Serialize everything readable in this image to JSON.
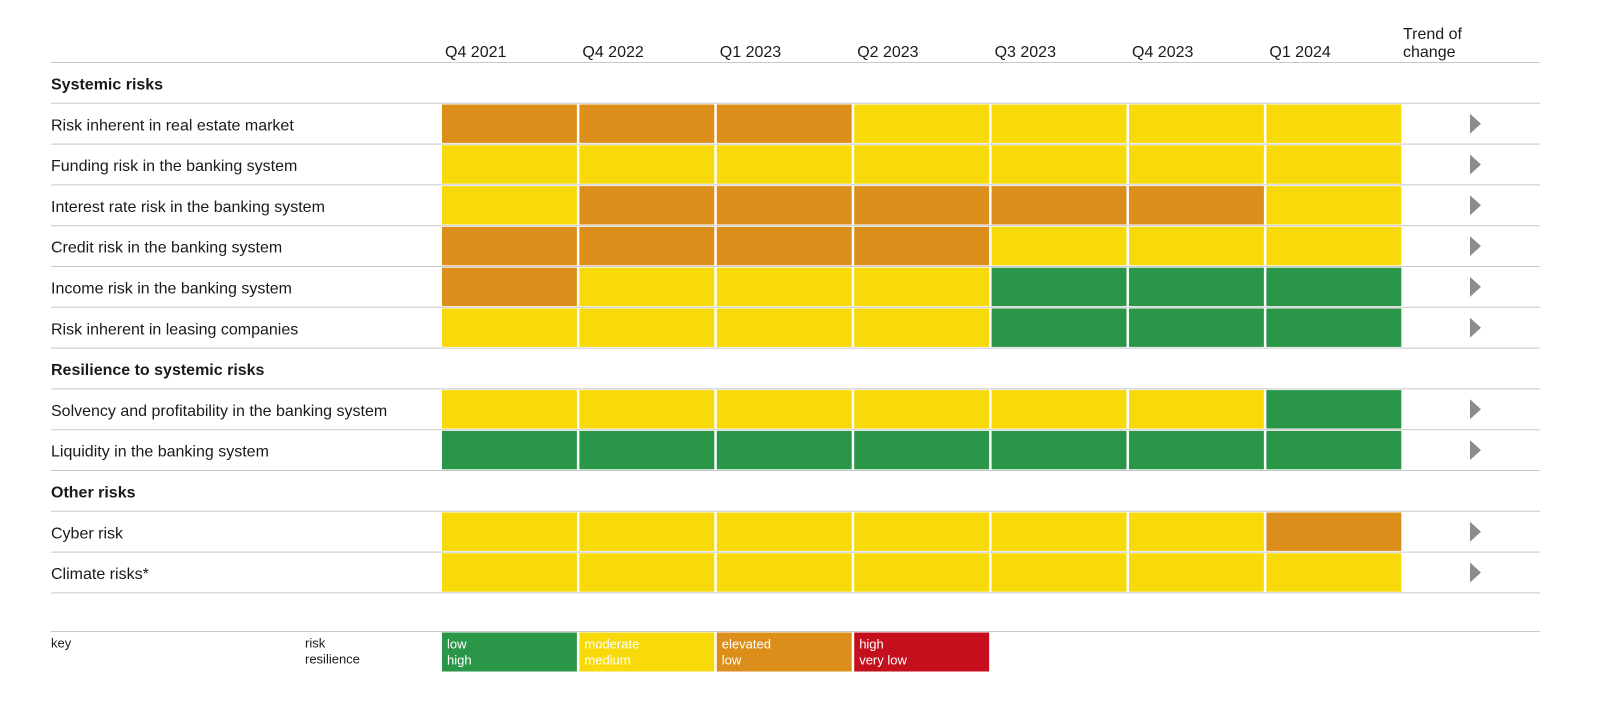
{
  "chart_data": {
    "type": "heatmap",
    "columns": [
      "Q4 2021",
      "Q4 2022",
      "Q1 2023",
      "Q2 2023",
      "Q3 2023",
      "Q4 2023",
      "Q1 2024"
    ],
    "trend_header": [
      "Trend of",
      "change"
    ],
    "level_colors": {
      "low": "#2a9647",
      "moderate": "#f8da0a",
      "elevated": "#db8e1a",
      "high": "#c50f1c"
    },
    "trend_icon": "right-triangle-icon",
    "trend_color": "#8c8c8c",
    "sections": [
      {
        "label": "Systemic risks",
        "rows": [
          {
            "label": "Risk inherent in real estate market",
            "levels": [
              "elevated",
              "elevated",
              "elevated",
              "moderate",
              "moderate",
              "moderate",
              "moderate"
            ],
            "trend": "right"
          },
          {
            "label": "Funding risk in the banking system",
            "levels": [
              "moderate",
              "moderate",
              "moderate",
              "moderate",
              "moderate",
              "moderate",
              "moderate"
            ],
            "trend": "right"
          },
          {
            "label": "Interest rate risk in the banking system",
            "levels": [
              "moderate",
              "elevated",
              "elevated",
              "elevated",
              "elevated",
              "elevated",
              "moderate"
            ],
            "trend": "right"
          },
          {
            "label": "Credit risk in the banking system",
            "levels": [
              "elevated",
              "elevated",
              "elevated",
              "elevated",
              "moderate",
              "moderate",
              "moderate"
            ],
            "trend": "right"
          },
          {
            "label": "Income risk in the banking system",
            "levels": [
              "elevated",
              "moderate",
              "moderate",
              "moderate",
              "low",
              "low",
              "low"
            ],
            "trend": "right"
          },
          {
            "label": "Risk inherent in leasing companies",
            "levels": [
              "moderate",
              "moderate",
              "moderate",
              "moderate",
              "low",
              "low",
              "low"
            ],
            "trend": "right"
          }
        ]
      },
      {
        "label": "Resilience to systemic risks",
        "rows": [
          {
            "label": "Solvency and profitability in the banking system",
            "levels": [
              "moderate",
              "moderate",
              "moderate",
              "moderate",
              "moderate",
              "moderate",
              "low"
            ],
            "trend": "right"
          },
          {
            "label": "Liquidity in the banking system",
            "levels": [
              "low",
              "low",
              "low",
              "low",
              "low",
              "low",
              "low"
            ],
            "trend": "right"
          }
        ]
      },
      {
        "label": "Other risks",
        "rows": [
          {
            "label": "Cyber risk",
            "levels": [
              "moderate",
              "moderate",
              "moderate",
              "moderate",
              "moderate",
              "moderate",
              "elevated"
            ],
            "trend": "right"
          },
          {
            "label": "Climate risks*",
            "levels": [
              "moderate",
              "moderate",
              "moderate",
              "moderate",
              "moderate",
              "moderate",
              "moderate"
            ],
            "trend": "right"
          }
        ]
      }
    ],
    "key": {
      "title": "key",
      "row_names": [
        "risk",
        "resilience"
      ],
      "items": [
        {
          "level": "low",
          "risk": "low",
          "resilience": "high"
        },
        {
          "level": "moderate",
          "risk": "moderate",
          "resilience": "medium"
        },
        {
          "level": "elevated",
          "risk": "elevated",
          "resilience": "low"
        },
        {
          "level": "high",
          "risk": "high",
          "resilience": "very low"
        }
      ]
    }
  }
}
